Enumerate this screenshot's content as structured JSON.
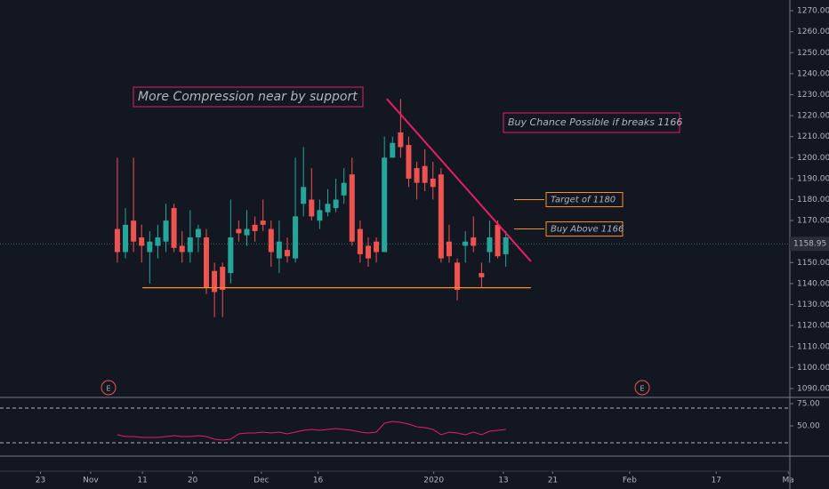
{
  "chart_data": {
    "type": "candlestick",
    "up_color": "#26a69a",
    "down_color": "#ef5350",
    "open": [
      1166,
      1155,
      1170,
      1162,
      1155,
      1158,
      1160,
      1176,
      1158,
      1155,
      1162,
      1162,
      1146,
      1148,
      1145,
      1166,
      1163,
      1168,
      1170,
      1166,
      1152,
      1156,
      1152,
      1178,
      1180,
      1170,
      1174,
      1176,
      1182,
      1192,
      1166,
      1158,
      1160,
      1155,
      1200,
      1212,
      1206,
      1195,
      1196,
      1190,
      1192,
      1160,
      1150,
      1158,
      1162,
      1145,
      1155,
      1168,
      1154
    ],
    "high": [
      1200,
      1176,
      1200,
      1168,
      1165,
      1168,
      1178,
      1178,
      1165,
      1175,
      1168,
      1166,
      1150,
      1150,
      1180,
      1170,
      1175,
      1172,
      1180,
      1170,
      1170,
      1162,
      1200,
      1205,
      1195,
      1180,
      1185,
      1190,
      1195,
      1200,
      1170,
      1162,
      1162,
      1210,
      1210,
      1228,
      1210,
      1198,
      1204,
      1198,
      1195,
      1168,
      1152,
      1165,
      1172,
      1150,
      1170,
      1170,
      1165
    ],
    "low": [
      1150,
      1152,
      1155,
      1150,
      1140,
      1152,
      1155,
      1155,
      1150,
      1150,
      1155,
      1135,
      1124,
      1124,
      1140,
      1160,
      1158,
      1160,
      1165,
      1148,
      1145,
      1150,
      1150,
      1172,
      1170,
      1166,
      1172,
      1174,
      1178,
      1158,
      1150,
      1148,
      1150,
      1155,
      1200,
      1200,
      1186,
      1180,
      1184,
      1180,
      1150,
      1150,
      1132,
      1150,
      1155,
      1138,
      1150,
      1152,
      1148
    ],
    "close": [
      1155,
      1168,
      1160,
      1158,
      1160,
      1162,
      1170,
      1157,
      1155,
      1162,
      1166,
      1138,
      1136,
      1137,
      1162,
      1164,
      1166,
      1165,
      1168,
      1155,
      1160,
      1153,
      1172,
      1186,
      1172,
      1175,
      1178,
      1180,
      1188,
      1160,
      1154,
      1152,
      1155,
      1200,
      1207,
      1205,
      1190,
      1188,
      1188,
      1186,
      1152,
      1153,
      1137,
      1160,
      1158,
      1143,
      1162,
      1153,
      1162
    ],
    "xlim": [
      -14.5,
      83.1
    ],
    "xticks": [
      {
        "value": -9.5,
        "label": "23"
      },
      {
        "value": -3.3,
        "label": "Nov"
      },
      {
        "value": 3.1,
        "label": "11"
      },
      {
        "value": 9.3,
        "label": "20"
      },
      {
        "value": 17.8,
        "label": "Dec"
      },
      {
        "value": 24.8,
        "label": "16"
      },
      {
        "value": 39.1,
        "label": "2020"
      },
      {
        "value": 47.7,
        "label": "13"
      },
      {
        "value": 53.8,
        "label": "21"
      },
      {
        "value": 63.3,
        "label": "Feb"
      },
      {
        "value": 74.0,
        "label": "17"
      },
      {
        "value": 82.9,
        "label": "Ma"
      }
    ],
    "ylim": [
      1086.6,
      1275.1
    ],
    "yticks": [
      {
        "value": 1090,
        "label": "1090.00"
      },
      {
        "value": 1100,
        "label": "1100.00"
      },
      {
        "value": 1110,
        "label": "1110.00"
      },
      {
        "value": 1120,
        "label": "1120.00"
      },
      {
        "value": 1130,
        "label": "1130.00"
      },
      {
        "value": 1140,
        "label": "1140.00"
      },
      {
        "value": 1150,
        "label": "1150.00"
      },
      {
        "value": 1160,
        "label": "1160.00"
      },
      {
        "value": 1170,
        "label": "1170.00"
      },
      {
        "value": 1180,
        "label": "1180.00"
      },
      {
        "value": 1190,
        "label": "1190.00"
      },
      {
        "value": 1200,
        "label": "1200.00"
      },
      {
        "value": 1210,
        "label": "1210.00"
      },
      {
        "value": 1220,
        "label": "1220.00"
      },
      {
        "value": 1230,
        "label": "1230.00"
      },
      {
        "value": 1240,
        "label": "1240.00"
      },
      {
        "value": 1250,
        "label": "1250.00"
      },
      {
        "value": 1260,
        "label": "1260.00"
      },
      {
        "value": 1270,
        "label": "1270.00"
      }
    ],
    "last_price": {
      "value": 1158.95,
      "label": "1158.95"
    },
    "trendline": {
      "color": "#e91e63",
      "x": [
        33.3,
        51.1
      ],
      "y": [
        1228,
        1150.6
      ]
    },
    "support": {
      "color": "#f7931a",
      "x": [
        3.1,
        51.1
      ],
      "y": [
        1138,
        1138
      ]
    },
    "annotations": [
      "More Compression near by support",
      "Buy Chance Possible if breaks 1166",
      "Target of 1180",
      "Buy Above 1166"
    ],
    "levels": [
      {
        "value": 1180,
        "label": "Target of 1180"
      },
      {
        "value": 1166,
        "label": "Buy Above 1166"
      }
    ],
    "events": [
      "E",
      "E"
    ],
    "rsi": {
      "color": "#e91e63",
      "values": [
        40,
        38,
        38,
        37,
        37,
        37,
        38,
        39,
        38,
        38,
        39,
        38,
        35,
        34,
        35,
        41,
        42,
        42,
        43,
        42,
        43,
        41,
        43,
        45,
        46,
        45,
        46,
        47,
        46,
        45,
        43,
        42,
        43,
        53,
        55,
        54,
        52,
        49,
        48,
        46,
        40,
        43,
        42,
        40,
        43,
        40,
        44,
        45,
        46
      ],
      "ylim": [
        17,
        81
      ],
      "yticks": [
        {
          "value": 75,
          "label": "75.00"
        },
        {
          "value": 50,
          "label": "50.00"
        }
      ],
      "bands": [
        70,
        31
      ]
    }
  }
}
